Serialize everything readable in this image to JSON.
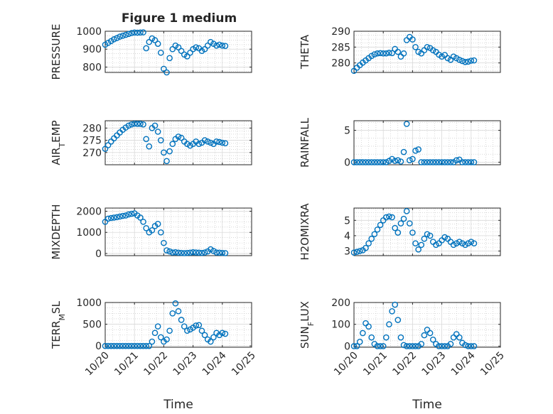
{
  "figure_title": "Figure 1 medium",
  "colors": {
    "marker": "#0072BD",
    "axis": "#262626",
    "grid": "#c0c0c0",
    "background": "#ffffff"
  },
  "shared_x": {
    "label": "Time",
    "ticks": [
      "10/20",
      "10/21",
      "10/22",
      "10/23",
      "10/24",
      "10/25"
    ],
    "range_days": [
      0,
      5
    ]
  },
  "chart_data": [
    {
      "type": "scatter",
      "id": "pressure",
      "ylabel": "PRESSURE",
      "ylim": [
        770,
        1000
      ],
      "yticks": [
        800,
        900,
        1000
      ],
      "x": [
        0,
        0.1,
        0.2,
        0.3,
        0.4,
        0.5,
        0.6,
        0.7,
        0.8,
        0.9,
        1.0,
        1.1,
        1.2,
        1.3,
        1.4,
        1.5,
        1.6,
        1.7,
        1.8,
        1.9,
        2.0,
        2.1,
        2.2,
        2.3,
        2.4,
        2.5,
        2.6,
        2.7,
        2.8,
        2.9,
        3.0,
        3.1,
        3.2,
        3.3,
        3.4,
        3.5,
        3.6,
        3.7,
        3.8,
        3.9,
        4.0,
        4.1
      ],
      "y": [
        925,
        935,
        945,
        955,
        962,
        970,
        975,
        980,
        985,
        990,
        993,
        992,
        993,
        994,
        905,
        940,
        960,
        950,
        930,
        880,
        790,
        770,
        850,
        900,
        920,
        910,
        890,
        870,
        860,
        880,
        900,
        910,
        905,
        890,
        900,
        920,
        940,
        930,
        920,
        925,
        920,
        918
      ]
    },
    {
      "type": "scatter",
      "id": "theta",
      "ylabel": "THETA",
      "ylim": [
        277,
        290
      ],
      "yticks": [
        280,
        285,
        290
      ],
      "x": [
        0,
        0.1,
        0.2,
        0.3,
        0.4,
        0.5,
        0.6,
        0.7,
        0.8,
        0.9,
        1.0,
        1.1,
        1.2,
        1.3,
        1.4,
        1.5,
        1.6,
        1.7,
        1.8,
        1.9,
        2.0,
        2.1,
        2.2,
        2.3,
        2.4,
        2.5,
        2.6,
        2.7,
        2.8,
        2.9,
        3.0,
        3.1,
        3.2,
        3.3,
        3.4,
        3.5,
        3.6,
        3.7,
        3.8,
        3.9,
        4.0,
        4.1
      ],
      "y": [
        277.5,
        278.5,
        279.3,
        280.1,
        280.8,
        281.5,
        282.2,
        282.7,
        283.0,
        283.1,
        283.0,
        283.0,
        283.2,
        283.1,
        284.4,
        283.5,
        282.0,
        283.0,
        287.2,
        288.2,
        287.4,
        285.0,
        283.5,
        283.0,
        284.0,
        285.0,
        284.7,
        284.0,
        283.5,
        282.6,
        282.0,
        282.5,
        281.5,
        281.0,
        282.0,
        281.5,
        281.0,
        280.6,
        280.3,
        280.4,
        280.7,
        280.8
      ]
    },
    {
      "type": "scatter",
      "id": "air_temp",
      "ylabel": "AIR_TEMP",
      "ylim": [
        265,
        283
      ],
      "yticks": [
        270,
        275,
        280
      ],
      "x": [
        0,
        0.1,
        0.2,
        0.3,
        0.4,
        0.5,
        0.6,
        0.7,
        0.8,
        0.9,
        1.0,
        1.1,
        1.2,
        1.3,
        1.4,
        1.5,
        1.6,
        1.7,
        1.8,
        1.9,
        2.0,
        2.1,
        2.2,
        2.3,
        2.4,
        2.5,
        2.6,
        2.7,
        2.8,
        2.9,
        3.0,
        3.1,
        3.2,
        3.3,
        3.4,
        3.5,
        3.6,
        3.7,
        3.8,
        3.9,
        4.0,
        4.1
      ],
      "y": [
        271.5,
        273.0,
        274.5,
        275.8,
        277.0,
        278.2,
        279.3,
        280.2,
        281.0,
        281.5,
        281.8,
        281.7,
        281.7,
        281.5,
        275.5,
        272.5,
        280.0,
        281.0,
        278.5,
        275.0,
        270.0,
        266.5,
        270.5,
        273.5,
        275.5,
        276.5,
        276.0,
        274.5,
        273.5,
        272.8,
        273.5,
        274.5,
        273.5,
        274.0,
        275.0,
        274.5,
        274.0,
        273.5,
        274.5,
        274.3,
        274.0,
        273.8
      ]
    },
    {
      "type": "scatter",
      "id": "rainfall",
      "ylabel": "RAINFALL",
      "ylim": [
        -0.4,
        6.5
      ],
      "yticks": [
        0,
        5
      ],
      "x": [
        0,
        0.1,
        0.2,
        0.3,
        0.4,
        0.5,
        0.6,
        0.7,
        0.8,
        0.9,
        1.0,
        1.1,
        1.2,
        1.3,
        1.4,
        1.5,
        1.6,
        1.7,
        1.8,
        1.9,
        2.0,
        2.1,
        2.2,
        2.3,
        2.4,
        2.5,
        2.6,
        2.7,
        2.8,
        2.9,
        3.0,
        3.1,
        3.2,
        3.3,
        3.4,
        3.5,
        3.6,
        3.7,
        3.8,
        3.9,
        4.0,
        4.1
      ],
      "y": [
        0,
        0,
        0,
        0,
        0,
        0,
        0,
        0,
        0,
        0,
        0,
        0,
        0.2,
        0.5,
        0.2,
        0.3,
        0.1,
        1.6,
        6.0,
        0.3,
        0.5,
        1.8,
        2.0,
        0,
        0,
        0,
        0,
        0,
        0,
        0,
        0,
        0,
        0,
        0,
        0,
        0.3,
        0.4,
        0,
        0,
        0,
        0,
        0
      ]
    },
    {
      "type": "scatter",
      "id": "mixdepth",
      "ylabel": "MIXDEPTH",
      "ylim": [
        -100,
        2150
      ],
      "yticks": [
        0,
        1000,
        2000
      ],
      "x": [
        0,
        0.1,
        0.2,
        0.3,
        0.4,
        0.5,
        0.6,
        0.7,
        0.8,
        0.9,
        1.0,
        1.1,
        1.2,
        1.3,
        1.4,
        1.5,
        1.6,
        1.7,
        1.8,
        1.9,
        2.0,
        2.1,
        2.2,
        2.3,
        2.4,
        2.5,
        2.6,
        2.7,
        2.8,
        2.9,
        3.0,
        3.1,
        3.2,
        3.3,
        3.4,
        3.5,
        3.6,
        3.7,
        3.8,
        3.9,
        4.0,
        4.1
      ],
      "y": [
        1500,
        1650,
        1680,
        1700,
        1720,
        1750,
        1780,
        1800,
        1850,
        1880,
        1900,
        1800,
        1700,
        1500,
        1200,
        1000,
        1100,
        1300,
        1400,
        1000,
        500,
        150,
        100,
        50,
        60,
        40,
        30,
        20,
        30,
        40,
        60,
        50,
        40,
        30,
        50,
        100,
        200,
        120,
        50,
        40,
        30,
        20
      ]
    },
    {
      "type": "scatter",
      "id": "h2omixra",
      "ylabel": "H2OMIXRA",
      "ylim": [
        2.7,
        5.8
      ],
      "yticks": [
        3,
        4,
        5
      ],
      "x": [
        0,
        0.1,
        0.2,
        0.3,
        0.4,
        0.5,
        0.6,
        0.7,
        0.8,
        0.9,
        1.0,
        1.1,
        1.2,
        1.3,
        1.4,
        1.5,
        1.6,
        1.7,
        1.8,
        1.9,
        2.0,
        2.1,
        2.2,
        2.3,
        2.4,
        2.5,
        2.6,
        2.7,
        2.8,
        2.9,
        3.0,
        3.1,
        3.2,
        3.3,
        3.4,
        3.5,
        3.6,
        3.7,
        3.8,
        3.9,
        4.0,
        4.1
      ],
      "y": [
        2.9,
        2.95,
        3.0,
        3.05,
        3.2,
        3.5,
        3.8,
        4.1,
        4.4,
        4.7,
        5.0,
        5.2,
        5.25,
        5.2,
        4.5,
        4.2,
        4.8,
        5.1,
        5.6,
        4.8,
        4.2,
        3.5,
        3.1,
        3.4,
        3.8,
        4.1,
        4.0,
        3.6,
        3.4,
        3.5,
        3.7,
        3.9,
        3.8,
        3.6,
        3.4,
        3.5,
        3.6,
        3.5,
        3.4,
        3.5,
        3.6,
        3.5
      ]
    },
    {
      "type": "scatter",
      "id": "terr_msl",
      "ylabel": "TERR_MSL",
      "ylim": [
        -30,
        1000
      ],
      "yticks": [
        0,
        500,
        1000
      ],
      "x": [
        0,
        0.1,
        0.2,
        0.3,
        0.4,
        0.5,
        0.6,
        0.7,
        0.8,
        0.9,
        1.0,
        1.1,
        1.2,
        1.3,
        1.4,
        1.5,
        1.6,
        1.7,
        1.8,
        1.9,
        2.0,
        2.1,
        2.2,
        2.3,
        2.4,
        2.5,
        2.6,
        2.7,
        2.8,
        2.9,
        3.0,
        3.1,
        3.2,
        3.3,
        3.4,
        3.5,
        3.6,
        3.7,
        3.8,
        3.9,
        4.0,
        4.1
      ],
      "y": [
        0,
        0,
        0,
        0,
        0,
        0,
        0,
        0,
        0,
        0,
        0,
        0,
        0,
        0,
        0,
        0,
        100,
        300,
        450,
        200,
        100,
        150,
        350,
        750,
        980,
        800,
        600,
        450,
        350,
        380,
        420,
        470,
        480,
        350,
        250,
        150,
        100,
        200,
        300,
        250,
        300,
        280
      ]
    },
    {
      "type": "scatter",
      "id": "sun_flux",
      "ylabel": "SUN_FLUX",
      "ylim": [
        -5,
        200
      ],
      "yticks": [
        0,
        100,
        200
      ],
      "x": [
        0,
        0.1,
        0.2,
        0.3,
        0.4,
        0.5,
        0.6,
        0.7,
        0.8,
        0.9,
        1.0,
        1.1,
        1.2,
        1.3,
        1.4,
        1.5,
        1.6,
        1.7,
        1.8,
        1.9,
        2.0,
        2.1,
        2.2,
        2.3,
        2.4,
        2.5,
        2.6,
        2.7,
        2.8,
        2.9,
        3.0,
        3.1,
        3.2,
        3.3,
        3.4,
        3.5,
        3.6,
        3.7,
        3.8,
        3.9,
        4.0,
        4.1
      ],
      "y": [
        0,
        0,
        20,
        60,
        105,
        90,
        40,
        10,
        0,
        0,
        0,
        40,
        100,
        160,
        190,
        120,
        40,
        5,
        0,
        0,
        0,
        0,
        0,
        10,
        50,
        75,
        60,
        30,
        10,
        0,
        0,
        0,
        0,
        10,
        40,
        55,
        40,
        15,
        5,
        0,
        0,
        0
      ]
    }
  ]
}
